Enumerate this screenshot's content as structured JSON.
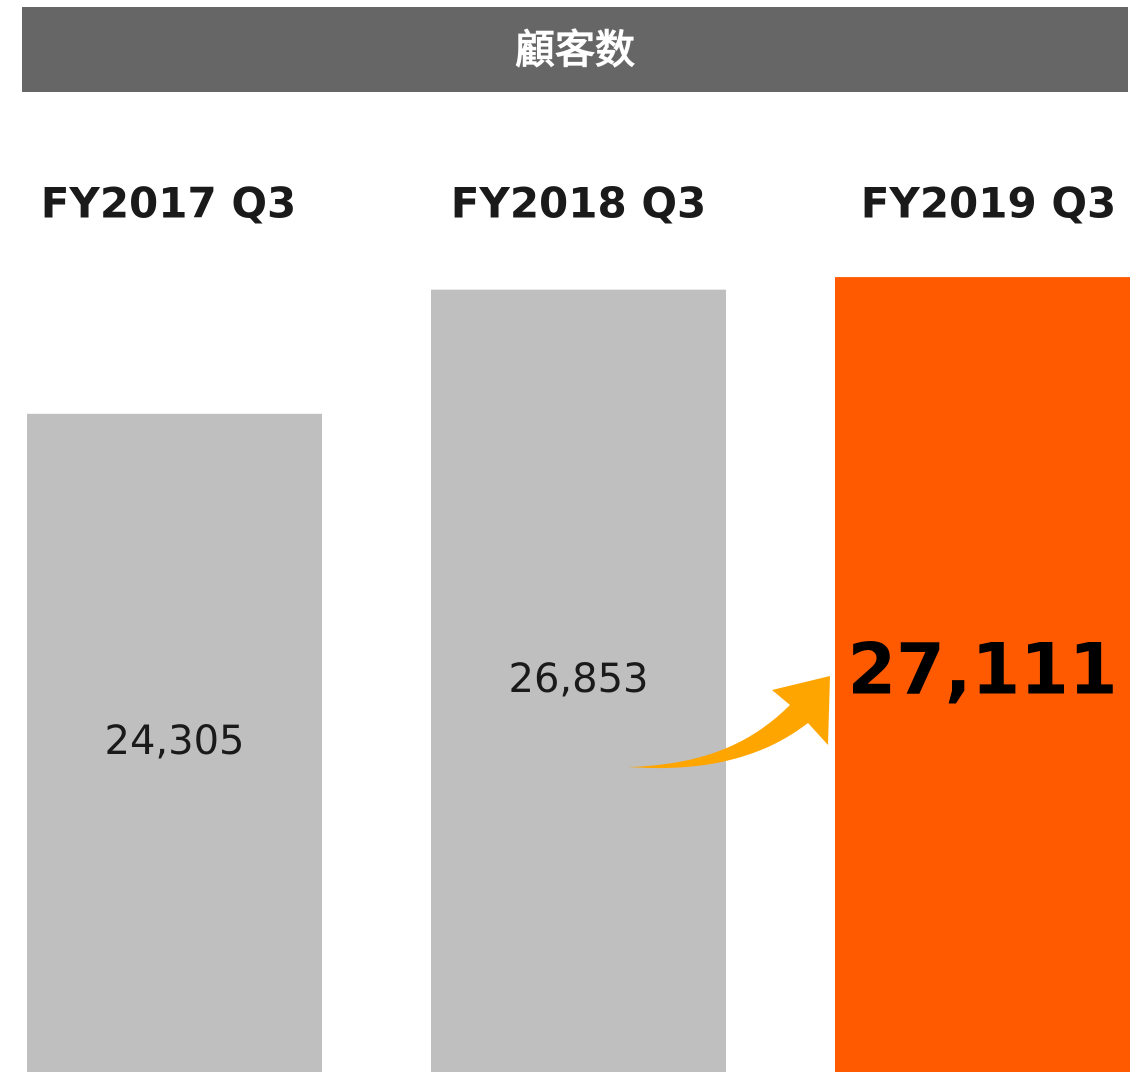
{
  "chart_data": {
    "type": "bar",
    "title": "顧客数",
    "categories": [
      "FY2017 Q3",
      "FY2018 Q3",
      "FY2019 Q3"
    ],
    "values": [
      24305,
      26853,
      27111
    ],
    "value_labels": [
      "24,305",
      "26,853",
      "27,111"
    ],
    "colors": [
      "#bfbfbf",
      "#bfbfbf",
      "#ff5a00"
    ],
    "ylim": [
      10800,
      27400
    ]
  }
}
